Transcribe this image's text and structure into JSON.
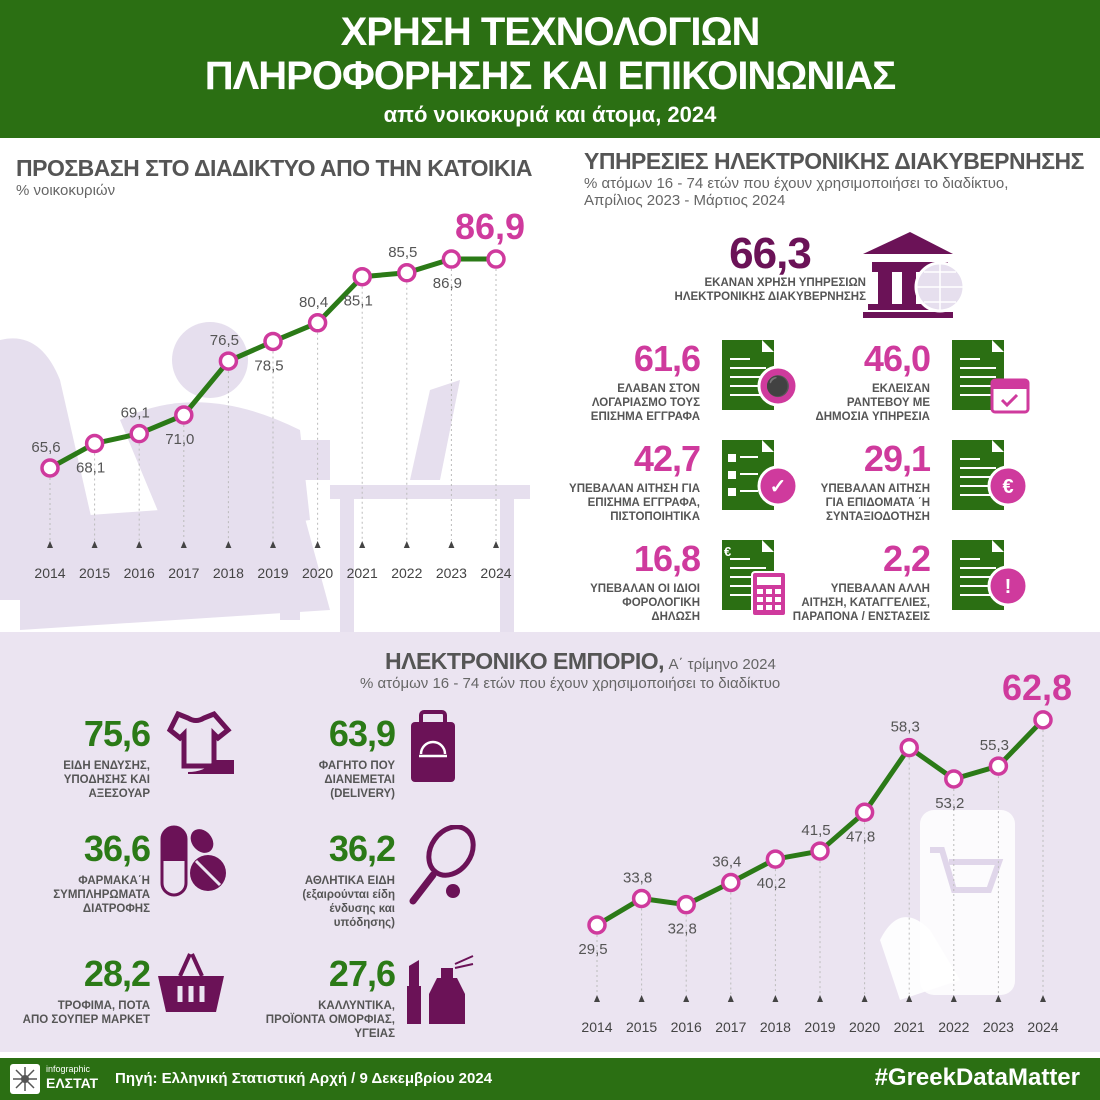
{
  "header": {
    "title_line1": "ΧΡΗΣΗ ΤΕΧΝΟΛΟΓΙΩΝ",
    "title_line2": "ΠΛΗΡΟΦΟΡΗΣΗΣ ΚΑΙ ΕΠΙΚΟΙΝΩΝΙΑΣ",
    "subtitle": "από νοικοκυριά και άτομα, 2024"
  },
  "colors": {
    "green": "#2b6f13",
    "pink": "#cf3a9d",
    "purple": "#6b1257",
    "lavender": "#ebe4f1"
  },
  "chart_data": [
    {
      "type": "line",
      "title": "ΠΡΟΣΒΑΣΗ ΣΤΟ ΔΙΑΔΙΚΤΥΟ ΑΠΟ ΤΗΝ ΚΑΤΟΙΚΙΑ",
      "subtitle": "% νοικοκυριών",
      "categories": [
        "2014",
        "2015",
        "2016",
        "2017",
        "2018",
        "2019",
        "2020",
        "2021",
        "2022",
        "2023",
        "2024"
      ],
      "labels": [
        "65,6",
        "68,1",
        "69,1",
        "71,0",
        "76,5",
        "78,5",
        "80,4",
        "85,1",
        "85,5",
        "86,9",
        "86,9"
      ],
      "values": [
        65.6,
        68.1,
        69.1,
        71.0,
        76.5,
        78.5,
        80.4,
        85.1,
        85.5,
        86.9,
        86.9
      ],
      "grid": false,
      "line_color": "#2b7a17",
      "marker_color": "#cf3a9d"
    },
    {
      "type": "line",
      "title": "ΗΛΕΚΤΡΟΝΙΚΟ ΕΜΠΟΡΙΟ,",
      "title_suffix": "Α΄ τρίμηνο 2024",
      "subtitle": "% ατόμων 16 - 74 ετών που έχουν χρησιμοποιήσει το διαδίκτυο",
      "categories": [
        "2014",
        "2015",
        "2016",
        "2017",
        "2018",
        "2019",
        "2020",
        "2021",
        "2022",
        "2023",
        "2024"
      ],
      "labels": [
        "29,5",
        "33,8",
        "32,8",
        "36,4",
        "40,2",
        "41,5",
        "47,8",
        "58,3",
        "53,2",
        "55,3",
        "62,8"
      ],
      "values": [
        29.5,
        33.8,
        32.8,
        36.4,
        40.2,
        41.5,
        47.8,
        58.3,
        53.2,
        55.3,
        62.8
      ],
      "grid": false,
      "line_color": "#2b7a17",
      "marker_color": "#cf3a9d"
    }
  ],
  "egov": {
    "title": "ΥΠΗΡΕΣΙΕΣ ΗΛΕΚΤΡΟΝΙΚΗΣ ΔΙΑΚΥΒΕΡΝΗΣΗΣ",
    "subtitle1": "% ατόμων 16 - 74 ετών που έχουν χρησιμοποιήσει το διαδίκτυο,",
    "subtitle2": "Απρίλιος 2023 - Μάρτιος 2024",
    "main_value": "66,3",
    "main_label1": "ΕΚΑΝΑΝ ΧΡΗΣΗ ΥΠΗΡΕΣΙΩΝ",
    "main_label2": "ΗΛΕΚΤΡΟΝΙΚΗΣ ΔΙΑΚΥΒΕΡΝΗΣΗΣ",
    "items": [
      {
        "value": "61,6",
        "l1": "ΕΛΑΒΑΝ ΣΤΟΝ",
        "l2": "ΛΟΓΑΡΙΑΣΜΟ ΤΟΥΣ",
        "l3": "ΕΠΙΣΗΜΑ ΕΓΓΡΑΦΑ",
        "icon": "document-stamp-icon"
      },
      {
        "value": "46,0",
        "l1": "ΕΚΛΕΙΣΑΝ",
        "l2": "ΡΑΝΤΕΒΟΥ ΜΕ",
        "l3": "ΔΗΜΟΣΙΑ ΥΠΗΡΕΣΙΑ",
        "icon": "document-calendar-icon"
      },
      {
        "value": "42,7",
        "l1": "ΥΠΕΒΑΛΑΝ ΑΙΤΗΣΗ ΓΙΑ",
        "l2": "ΕΠΙΣΗΜΑ ΕΓΓΡΑΦΑ,",
        "l3": "ΠΙΣΤΟΠΟΙΗΤΙΚΑ",
        "icon": "document-checklist-icon"
      },
      {
        "value": "29,1",
        "l1": "ΥΠΕΒΑΛΑΝ ΑΙΤΗΣΗ",
        "l2": "ΓΙΑ ΕΠΙΔΟΜΑΤΑ ΄Η",
        "l3": "ΣΥΝΤΑΞΙΟΔΟΤΗΣΗ",
        "icon": "document-pension-icon"
      },
      {
        "value": "16,8",
        "l1": "ΥΠΕΒΑΛΑΝ ΟΙ ΙΔΙΟΙ",
        "l2": "ΦΟΡΟΛΟΓΙΚΗ",
        "l3": "ΔΗΛΩΣΗ",
        "icon": "document-calculator-icon"
      },
      {
        "value": "2,2",
        "l1": "ΥΠΕΒΑΛΑΝ ΑΛΛΗ",
        "l2": "ΑΙΤΗΣΗ, ΚΑΤΑΓΓΕΛΙΕΣ,",
        "l3": "ΠΑΡΑΠΟΝΑ / ΕΝΣΤΑΣΕΙΣ",
        "icon": "document-alert-icon"
      }
    ]
  },
  "ecommerce": {
    "items": [
      {
        "value": "75,6",
        "l1": "ΕΙΔΗ ΕΝΔΥΣΗΣ,",
        "l2": "ΥΠΟΔΗΣΗΣ ΚΑΙ",
        "l3": "ΑΞΕΣΟΥΑΡ",
        "l4": "",
        "icon": "clothing-shoe-icon"
      },
      {
        "value": "63,9",
        "l1": "ΦΑΓΗΤΟ ΠΟΥ",
        "l2": "ΔΙΑΝΕΜΕΤΑΙ",
        "l3": "(DELIVERY)",
        "l4": "",
        "icon": "food-delivery-bag-icon"
      },
      {
        "value": "36,6",
        "l1": "ΦΑΡΜΑΚΑ΄Η",
        "l2": "ΣΥΜΠΛΗΡΩΜΑΤΑ",
        "l3": "ΔΙΑΤΡΟΦΗΣ",
        "l4": "",
        "icon": "pills-icon"
      },
      {
        "value": "36,2",
        "l1": "ΑΘΛΗΤΙΚΑ ΕΙΔΗ",
        "l2": "(εξαιρούνται είδη",
        "l3": "ένδυσης και",
        "l4": "υπόδησης)",
        "icon": "tennis-racket-icon"
      },
      {
        "value": "28,2",
        "l1": "ΤΡΟΦΙΜΑ, ΠΟΤΑ",
        "l2": "ΑΠΟ ΣΟΥΠΕΡ ΜΑΡΚΕΤ",
        "l3": "",
        "l4": "",
        "icon": "shopping-basket-icon"
      },
      {
        "value": "27,6",
        "l1": "ΚΑΛΛΥΝΤΙΚΑ,",
        "l2": "ΠΡΟΪΟΝΤΑ ΟΜΟΡΦΙΑΣ,",
        "l3": "ΥΓΕΙΑΣ",
        "l4": "",
        "icon": "cosmetics-icon"
      }
    ]
  },
  "footer": {
    "logo_small": "infographic",
    "logo_big": "ΕΛΣΤΑΤ",
    "source": "Πηγή: Ελληνική Στατιστική Αρχή  / 9 Δεκεμβρίου 2024",
    "hashtag": "#GreekDataMatter"
  }
}
